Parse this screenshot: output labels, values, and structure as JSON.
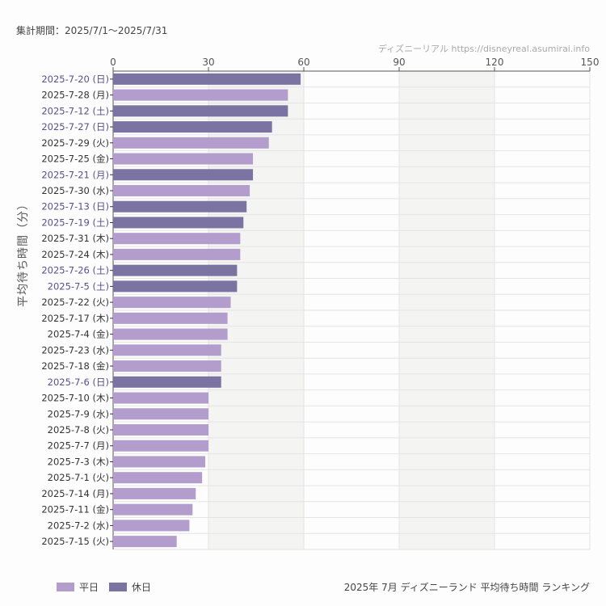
{
  "header": {
    "period": "集計期間：2025/7/1〜2025/7/31",
    "credit": "ディズニーリアル https://disneyreal.asumirai.info"
  },
  "footer": {
    "title": "2025年 7月 ディズニーランド 平均待ち時間 ランキング"
  },
  "colors": {
    "weekday": "#b39dcc",
    "holiday": "#7b74a3",
    "holiday_label": "#5a4e8e",
    "weekday_label": "#333333",
    "band": "#f4f5f3"
  },
  "chart_data": {
    "type": "bar",
    "orientation": "horizontal",
    "ylabel": "平均待ち時間（分）",
    "xlim": [
      0,
      150
    ],
    "xticks": [
      0,
      30,
      60,
      90,
      120,
      150
    ],
    "grid": true,
    "legend_position": "bottom-left",
    "legend": [
      {
        "name": "平日",
        "key": "weekday"
      },
      {
        "name": "休日",
        "key": "holiday"
      }
    ],
    "categories": [
      "2025-7-20 (日)",
      "2025-7-28 (月)",
      "2025-7-12 (土)",
      "2025-7-27 (日)",
      "2025-7-29 (火)",
      "2025-7-25 (金)",
      "2025-7-21 (月)",
      "2025-7-30 (水)",
      "2025-7-13 (日)",
      "2025-7-19 (土)",
      "2025-7-31 (木)",
      "2025-7-24 (木)",
      "2025-7-26 (土)",
      "2025-7-5 (土)",
      "2025-7-22 (火)",
      "2025-7-17 (木)",
      "2025-7-4 (金)",
      "2025-7-23 (水)",
      "2025-7-18 (金)",
      "2025-7-6 (日)",
      "2025-7-10 (木)",
      "2025-7-9 (水)",
      "2025-7-8 (火)",
      "2025-7-7 (月)",
      "2025-7-3 (木)",
      "2025-7-1 (火)",
      "2025-7-14 (月)",
      "2025-7-11 (金)",
      "2025-7-2 (水)",
      "2025-7-15 (火)"
    ],
    "values": [
      59,
      55,
      55,
      50,
      49,
      44,
      44,
      43,
      42,
      41,
      40,
      40,
      39,
      39,
      37,
      36,
      36,
      34,
      34,
      34,
      30,
      30,
      30,
      30,
      29,
      28,
      26,
      25,
      24,
      20
    ],
    "holiday": [
      true,
      false,
      true,
      true,
      false,
      false,
      true,
      false,
      true,
      true,
      false,
      false,
      true,
      true,
      false,
      false,
      false,
      false,
      false,
      true,
      false,
      false,
      false,
      false,
      false,
      false,
      false,
      false,
      false,
      false
    ]
  }
}
